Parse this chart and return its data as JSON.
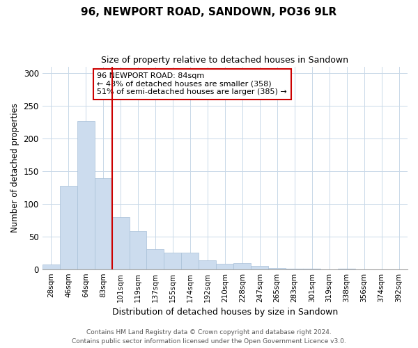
{
  "title": "96, NEWPORT ROAD, SANDOWN, PO36 9LR",
  "subtitle": "Size of property relative to detached houses in Sandown",
  "xlabel": "Distribution of detached houses by size in Sandown",
  "ylabel": "Number of detached properties",
  "bar_labels": [
    "28sqm",
    "46sqm",
    "64sqm",
    "83sqm",
    "101sqm",
    "119sqm",
    "137sqm",
    "155sqm",
    "174sqm",
    "192sqm",
    "210sqm",
    "228sqm",
    "247sqm",
    "265sqm",
    "283sqm",
    "301sqm",
    "319sqm",
    "338sqm",
    "356sqm",
    "374sqm",
    "392sqm"
  ],
  "bar_values": [
    7,
    127,
    226,
    139,
    79,
    58,
    31,
    25,
    25,
    14,
    8,
    9,
    5,
    2,
    1,
    1,
    0,
    1,
    0,
    0,
    0
  ],
  "bar_color": "#ccdcee",
  "bar_edge_color": "#a8c0d8",
  "highlight_index": 3,
  "redline_color": "#cc0000",
  "ylim": [
    0,
    310
  ],
  "yticks": [
    0,
    50,
    100,
    150,
    200,
    250,
    300
  ],
  "annotation_text": "96 NEWPORT ROAD: 84sqm\n← 48% of detached houses are smaller (358)\n51% of semi-detached houses are larger (385) →",
  "annotation_box_edge": "#cc0000",
  "footer_line1": "Contains HM Land Registry data © Crown copyright and database right 2024.",
  "footer_line2": "Contains public sector information licensed under the Open Government Licence v3.0.",
  "background_color": "#ffffff",
  "grid_color": "#c8d8e8"
}
